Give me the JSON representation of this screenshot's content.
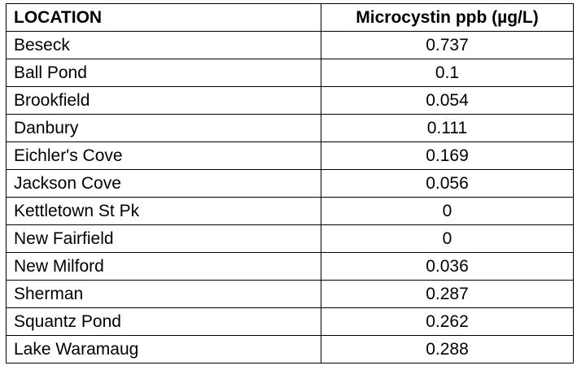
{
  "table": {
    "headers": {
      "location": "LOCATION",
      "value": "Microcystin ppb (µg/L)"
    },
    "rows": [
      {
        "location": "Beseck",
        "value": "0.737"
      },
      {
        "location": "Ball Pond",
        "value": "0.1"
      },
      {
        "location": "Brookfield",
        "value": "0.054"
      },
      {
        "location": "Danbury",
        "value": "0.111"
      },
      {
        "location": "Eichler's Cove",
        "value": "0.169"
      },
      {
        "location": "Jackson Cove",
        "value": "0.056"
      },
      {
        "location": "Kettletown St Pk",
        "value": "0"
      },
      {
        "location": "New Fairfield",
        "value": "0"
      },
      {
        "location": "New Milford",
        "value": "0.036"
      },
      {
        "location": "Sherman",
        "value": "0.287"
      },
      {
        "location": "Squantz Pond",
        "value": "0.262"
      },
      {
        "location": "Lake Waramaug",
        "value": "0.288"
      }
    ]
  }
}
